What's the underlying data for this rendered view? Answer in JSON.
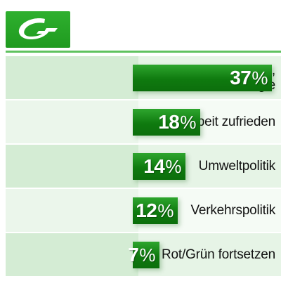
{
  "brand": {
    "color": "#1f9a1f",
    "logo_icon": "party-logo-g"
  },
  "chart_data": {
    "type": "bar",
    "orientation": "horizontal",
    "categories": [
      [
        "Parteiprogramm,",
        "Ideologie"
      ],
      [
        "mit Arbeit zufrieden"
      ],
      [
        "Umweltpolitik"
      ],
      [
        "Verkehrspolitik"
      ],
      [
        "Rot/Grün fortsetzen"
      ]
    ],
    "values": [
      37,
      18,
      14,
      12,
      7
    ],
    "value_suffix": "%",
    "xlim": [
      0,
      37
    ],
    "bar_color": "#0f7a0f"
  }
}
